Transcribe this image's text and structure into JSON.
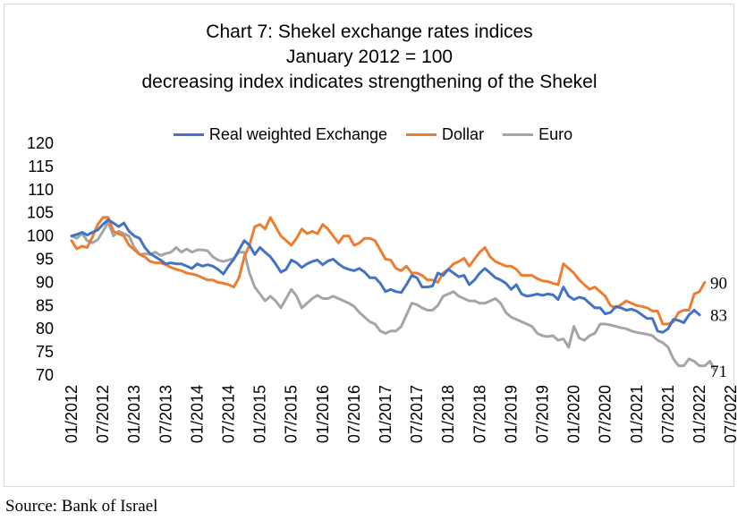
{
  "chart_data": {
    "type": "line",
    "title_lines": [
      "Chart 7: Shekel exchange rates indices",
      "January 2012 = 100",
      "decreasing index indicates strengthening of the Shekel"
    ],
    "ylim": [
      70,
      120
    ],
    "yticks": [
      "120",
      "115",
      "110",
      "105",
      "100",
      "95",
      "90",
      "85",
      "80",
      "75",
      "70"
    ],
    "xtick_labels": [
      "01/2012",
      "07/2012",
      "01/2013",
      "07/2013",
      "01/2014",
      "07/2014",
      "01/2015",
      "07/2015",
      "01/2016",
      "07/2016",
      "01/2017",
      "07/2017",
      "01/2018",
      "07/2018",
      "01/2019",
      "07/2019",
      "01/2020",
      "07/2020",
      "01/2021",
      "07/2021",
      "01/2022",
      "07/2022"
    ],
    "series": [
      {
        "name": "Real weighted Exchange",
        "color": "#4472c4",
        "end_label": "83",
        "values": [
          100,
          100.3,
          100.8,
          100.2,
          100.8,
          101.3,
          102.5,
          103.5,
          102.8,
          102,
          102.8,
          101,
          100,
          99.5,
          97.5,
          96.2,
          95.5,
          94.8,
          94,
          94.2,
          94,
          94,
          93.5,
          93,
          94,
          93.5,
          93.8,
          93.5,
          92.8,
          91.8,
          93.5,
          95,
          97,
          99,
          98,
          96,
          97.5,
          96.5,
          95.5,
          94,
          92.2,
          92.8,
          94.8,
          94.2,
          93.2,
          94,
          94.5,
          94.8,
          93.8,
          94.6,
          95,
          94,
          93.2,
          92.8,
          92.5,
          93,
          92.2,
          91,
          91,
          89.8,
          88,
          88.5,
          88,
          87.8,
          89.5,
          91.5,
          91,
          89,
          89,
          89.2,
          92,
          91.5,
          92.8,
          92,
          91.2,
          91.5,
          89.5,
          90.5,
          92,
          93,
          92,
          91,
          90.5,
          89.8,
          88.5,
          89.5,
          87.5,
          87,
          87.2,
          87.5,
          87.2,
          87.5,
          87.3,
          86.3,
          89,
          87,
          86.3,
          86.8,
          86.5,
          85.5,
          84.5,
          84.5,
          83.2,
          83.5,
          84.8,
          84.5,
          84,
          84.2,
          83.8,
          83,
          82.2,
          82.2,
          79.5,
          79.2,
          80,
          82,
          81.8,
          81.3,
          83,
          84,
          83
        ]
      },
      {
        "name": "Dollar",
        "color": "#ed7d31",
        "end_label": "90",
        "values": [
          99,
          97.2,
          97.8,
          97.5,
          99.8,
          102.5,
          104,
          104,
          101,
          100.5,
          100,
          98,
          97,
          96,
          95.5,
          94.5,
          94.2,
          94.2,
          93.8,
          93.2,
          92.8,
          92.5,
          92,
          91.8,
          91.5,
          91,
          90.5,
          90.5,
          90,
          89.8,
          89.5,
          89,
          91,
          95.5,
          98,
          102,
          102.5,
          101.5,
          104,
          102,
          100,
          99,
          98,
          99.5,
          101.5,
          100.5,
          101,
          100.5,
          102.5,
          101.5,
          100,
          98.5,
          100,
          100,
          98,
          98.5,
          99.5,
          99.5,
          99,
          97,
          95,
          94.8,
          93,
          92.5,
          93.5,
          92,
          92,
          91.5,
          90.5,
          90.5,
          90,
          92,
          92.8,
          94,
          94.5,
          95.2,
          93.5,
          95,
          96.5,
          97.5,
          95.5,
          94.5,
          94,
          93.5,
          93.5,
          92.8,
          91.5,
          91.5,
          91.5,
          90.8,
          90.3,
          90.2,
          89.8,
          89.5,
          94,
          93,
          92,
          90.5,
          89.5,
          88.5,
          89,
          88,
          87,
          85,
          84.5,
          85.2,
          86,
          85.5,
          85,
          84.8,
          84.5,
          83.8,
          83.8,
          81,
          81,
          81.5,
          83.5,
          84,
          84,
          87.5,
          88,
          90
        ]
      },
      {
        "name": "Euro",
        "color": "#a5a5a5",
        "end_label": "71",
        "values": [
          100,
          99.5,
          100.5,
          99,
          98.5,
          99.2,
          101,
          103,
          100,
          101,
          100.5,
          100,
          97.5,
          96,
          96.2,
          96,
          96.5,
          95.8,
          96.2,
          96.5,
          97.5,
          96.5,
          97.2,
          96.5,
          97,
          97,
          96.8,
          95.5,
          94.8,
          94.5,
          94.8,
          95.2,
          96.5,
          96.5,
          92,
          89,
          87.5,
          86,
          87,
          86,
          84.5,
          86.5,
          88.5,
          87,
          84.5,
          85.5,
          86.5,
          87.2,
          86.5,
          86.5,
          87,
          86.5,
          86,
          85.5,
          84.8,
          83.5,
          82.5,
          81.5,
          81,
          79.5,
          79,
          79.5,
          79.5,
          80.5,
          83,
          85.5,
          85.2,
          84.5,
          84,
          84,
          85,
          87,
          87.5,
          88,
          87,
          86.5,
          86,
          86,
          85.5,
          85.5,
          86,
          86.5,
          85.5,
          83.5,
          82.5,
          82,
          81.5,
          81,
          80.5,
          79,
          78.5,
          78.3,
          78.5,
          77.5,
          77.8,
          76,
          80.5,
          78,
          77.5,
          78.5,
          79,
          81,
          81,
          80.8,
          80.5,
          80.2,
          80,
          79.5,
          79.2,
          79,
          78.8,
          78.5,
          77.5,
          77,
          76,
          73.5,
          72,
          72,
          73.5,
          73,
          72,
          72,
          73,
          71
        ]
      }
    ],
    "source": "Source: Bank of Israel"
  }
}
